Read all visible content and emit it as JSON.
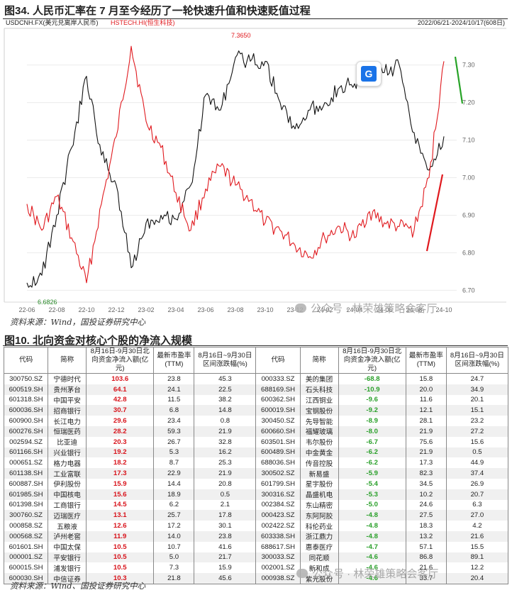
{
  "figure": {
    "title": "图34. 人民币汇率在 7 月至今经历了一轮快速升值和快速贬值过程",
    "source": "资料来源：Wind，国投证券研究中心",
    "header_series_usdcnh": "USDCNH.FX(美元兑离岸人民币)",
    "header_series_hstech": "HSTECH.HI(恒生科技)",
    "header_date_range": "2022/06/21-2024/10/17(608日)"
  },
  "chart_data": {
    "type": "line",
    "x_ticks": [
      "22-06",
      "22-08",
      "22-10",
      "22-12",
      "23-02",
      "23-04",
      "23-06",
      "23-08",
      "23-10",
      "23-12",
      "24-02",
      "24-04",
      "24-06",
      "24-08",
      "24-10"
    ],
    "y_right_ticks": [
      6.7,
      6.8,
      6.9,
      7.0,
      7.1,
      7.2,
      7.3
    ],
    "ylim": [
      6.68,
      7.39
    ],
    "annotations": {
      "max_label": "7.3650",
      "min_label": "6.6826"
    },
    "series": [
      {
        "name": "USDCNH.FX(美元兑离岸人民币)",
        "color": "#111111",
        "points": [
          [
            "22-06",
            6.72
          ],
          [
            "22-07",
            6.74
          ],
          [
            "22-08",
            6.9
          ],
          [
            "22-09",
            7.08
          ],
          [
            "22-10",
            7.27
          ],
          [
            "22-11",
            7.06
          ],
          [
            "22-12",
            6.98
          ],
          [
            "23-01",
            6.76
          ],
          [
            "23-02",
            6.88
          ],
          [
            "23-03",
            6.9
          ],
          [
            "23-04",
            6.89
          ],
          [
            "23-05",
            6.98
          ],
          [
            "23-06",
            7.22
          ],
          [
            "23-07",
            7.18
          ],
          [
            "23-08",
            7.32
          ],
          [
            "23-09",
            7.31
          ],
          [
            "23-10",
            7.31
          ],
          [
            "23-11",
            7.2
          ],
          [
            "23-12",
            7.13
          ],
          [
            "24-01",
            7.18
          ],
          [
            "24-02",
            7.2
          ],
          [
            "24-03",
            7.24
          ],
          [
            "24-04",
            7.25
          ],
          [
            "24-05",
            7.26
          ],
          [
            "24-06",
            7.28
          ],
          [
            "24-07",
            7.3
          ],
          [
            "24-08",
            7.12
          ],
          [
            "24-09",
            7.02
          ],
          [
            "24-10",
            7.11
          ]
        ]
      },
      {
        "name": "HSTECH.HI(恒生科技)",
        "color": "#e0191e",
        "points": [
          [
            "22-06",
            6.93
          ],
          [
            "22-07",
            6.86
          ],
          [
            "22-08",
            6.95
          ],
          [
            "22-09",
            6.84
          ],
          [
            "22-10",
            6.72
          ],
          [
            "22-11",
            6.93
          ],
          [
            "22-12",
            7.11
          ],
          [
            "23-01",
            7.35
          ],
          [
            "23-02",
            7.15
          ],
          [
            "23-03",
            7.08
          ],
          [
            "23-04",
            6.96
          ],
          [
            "23-05",
            6.86
          ],
          [
            "23-06",
            6.97
          ],
          [
            "23-07",
            7.03
          ],
          [
            "23-08",
            6.98
          ],
          [
            "23-09",
            6.94
          ],
          [
            "23-10",
            6.88
          ],
          [
            "23-11",
            6.86
          ],
          [
            "23-12",
            6.82
          ],
          [
            "24-01",
            6.79
          ],
          [
            "24-02",
            6.84
          ],
          [
            "24-03",
            6.87
          ],
          [
            "24-04",
            6.84
          ],
          [
            "24-05",
            6.91
          ],
          [
            "24-06",
            6.88
          ],
          [
            "24-07",
            6.87
          ],
          [
            "24-08",
            6.86
          ],
          [
            "24-09",
            7.0
          ],
          [
            "24-10",
            7.31
          ]
        ]
      }
    ]
  },
  "table": {
    "title": "图10. 北向资金对核心个股的净流入规模",
    "source": "资料来源：Wind、国投证券研究中心",
    "headers": [
      "代码",
      "简称",
      "8月16日-9月30日北向资金净流入额(亿元)",
      "最新市盈率(TTM)",
      "8月16日~9月30日区间涨跌幅(%)",
      "代码",
      "简称",
      "8月16日-9月30日北向资金净流入额(亿元)",
      "最新市盈率(TTM)",
      "8月16日~9月30日区间涨跌幅(%)"
    ],
    "rows": [
      [
        "300750.SZ",
        "宁德时代",
        "103.6",
        "23.8",
        "45.3",
        "000333.SZ",
        "美的集团",
        "-68.8",
        "15.8",
        "24.7"
      ],
      [
        "600519.SH",
        "贵州茅台",
        "64.1",
        "24.1",
        "22.5",
        "688169.SH",
        "石头科技",
        "-10.9",
        "20.0",
        "34.9"
      ],
      [
        "601318.SH",
        "中国平安",
        "42.8",
        "11.5",
        "38.2",
        "600362.SH",
        "江西铜业",
        "-9.6",
        "11.6",
        "20.1"
      ],
      [
        "600036.SH",
        "招商银行",
        "30.7",
        "6.8",
        "14.8",
        "600019.SH",
        "宝钢股份",
        "-9.2",
        "12.1",
        "15.1"
      ],
      [
        "600900.SH",
        "长江电力",
        "29.6",
        "23.4",
        "0.8",
        "300450.SZ",
        "先导智能",
        "-8.9",
        "28.1",
        "23.2"
      ],
      [
        "600276.SH",
        "恒瑞医药",
        "28.2",
        "59.3",
        "21.9",
        "600660.SH",
        "福耀玻璃",
        "-8.0",
        "21.9",
        "27.2"
      ],
      [
        "002594.SZ",
        "比亚迪",
        "20.3",
        "26.7",
        "32.8",
        "603501.SH",
        "韦尔股份",
        "-6.7",
        "75.6",
        "15.6"
      ],
      [
        "601166.SH",
        "兴业银行",
        "19.2",
        "5.3",
        "16.2",
        "600489.SH",
        "中金黄金",
        "-6.2",
        "21.9",
        "0.5"
      ],
      [
        "000651.SZ",
        "格力电器",
        "18.2",
        "8.7",
        "25.3",
        "688036.SH",
        "传音控股",
        "-6.2",
        "17.3",
        "44.9"
      ],
      [
        "601138.SH",
        "工业富联",
        "17.3",
        "22.9",
        "21.9",
        "300502.SZ",
        "新易盛",
        "-5.9",
        "82.3",
        "37.4"
      ],
      [
        "600887.SH",
        "伊利股份",
        "15.9",
        "14.4",
        "20.8",
        "601799.SH",
        "星宇股份",
        "-5.4",
        "34.5",
        "26.9"
      ],
      [
        "601985.SH",
        "中国核电",
        "15.6",
        "18.9",
        "0.5",
        "300316.SZ",
        "晶盛机电",
        "-5.3",
        "10.2",
        "20.7"
      ],
      [
        "601398.SH",
        "工商银行",
        "14.5",
        "6.2",
        "2.1",
        "002384.SZ",
        "东山精密",
        "-5.0",
        "24.6",
        "6.3"
      ],
      [
        "300760.SZ",
        "迈瑞医疗",
        "13.1",
        "25.7",
        "17.8",
        "000423.SZ",
        "东阿阿胶",
        "-4.8",
        "27.5",
        "27.0"
      ],
      [
        "000858.SZ",
        "五粮液",
        "12.6",
        "17.2",
        "30.1",
        "002422.SZ",
        "科伦药业",
        "-4.8",
        "18.3",
        "4.2"
      ],
      [
        "000568.SZ",
        "泸州老窖",
        "11.9",
        "14.0",
        "23.8",
        "603338.SH",
        "浙江鼎力",
        "-4.8",
        "13.2",
        "21.6"
      ],
      [
        "601601.SH",
        "中国太保",
        "10.5",
        "10.7",
        "41.6",
        "688617.SH",
        "惠泰医疗",
        "-4.7",
        "57.1",
        "15.5"
      ],
      [
        "000001.SZ",
        "平安银行",
        "10.5",
        "5.0",
        "21.7",
        "300033.SZ",
        "同花顺",
        "-4.6",
        "86.8",
        "89.1"
      ],
      [
        "600015.SH",
        "浦发银行",
        "10.5",
        "7.3",
        "15.9",
        "002001.SZ",
        "新和成",
        "-4.6",
        "21.6",
        "12.2"
      ],
      [
        "600030.SH",
        "中信证券",
        "10.3",
        "21.8",
        "45.6",
        "000938.SZ",
        "紫光股份",
        "-4.6",
        "33.7",
        "20.4"
      ]
    ]
  },
  "watermark": "公众号 · 林荣雄策略会客厅",
  "colors": {
    "usdcnh": "#111111",
    "hstech": "#e0191e",
    "inflow": "#d8131b",
    "outflow": "#2aa02a"
  }
}
